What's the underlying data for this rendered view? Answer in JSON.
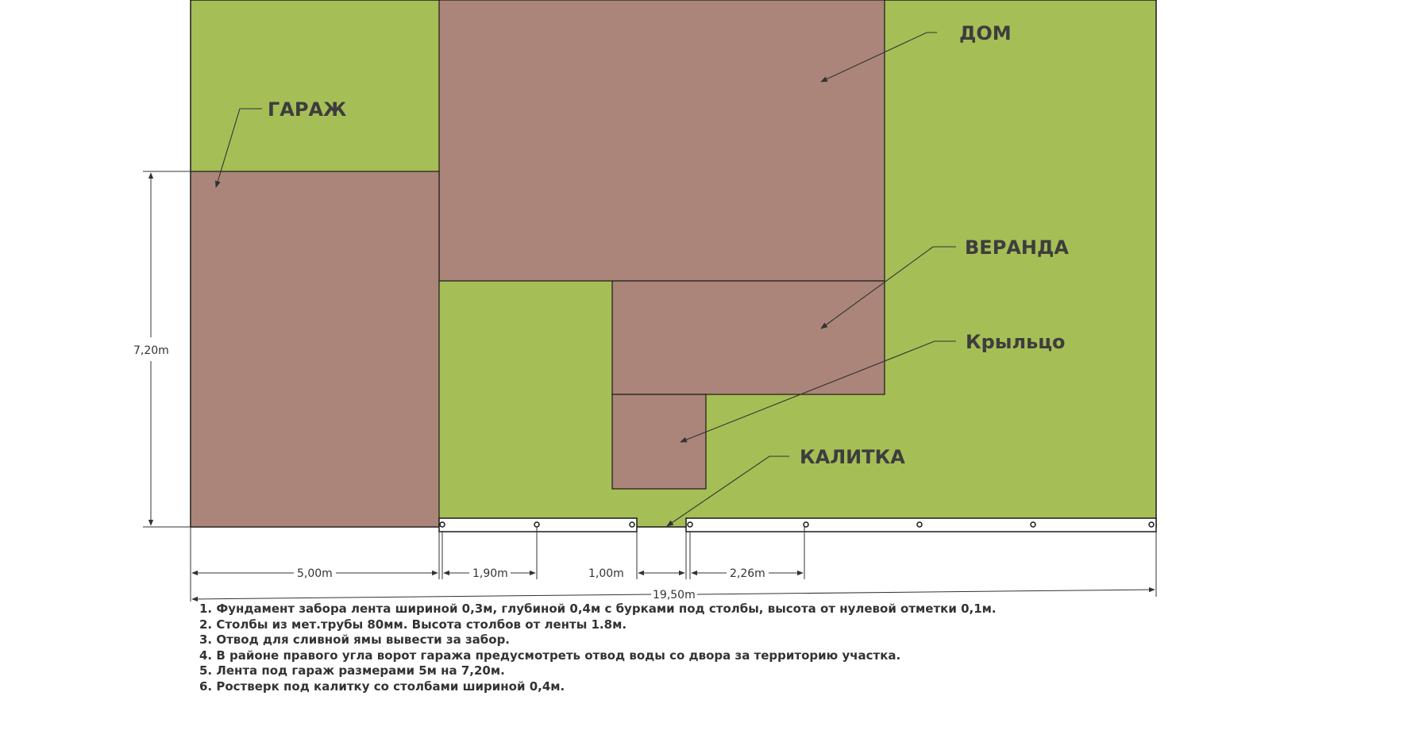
{
  "labels": {
    "dom": "ДОМ",
    "garazh": "ГАРАЖ",
    "veranda": "ВЕРАНДА",
    "kryltso": "Крыльцо",
    "kalitka": "КАЛИТКА"
  },
  "dimensions": {
    "height_garage": "7,20m",
    "w_garage": "5,00m",
    "w_1_90": "1,90m",
    "w_gate": "1,00m",
    "w_2_26": "2,26m",
    "w_total": "19,50m"
  },
  "notes": [
    "1. Фундамент забора лента шириной 0,3м, глубиной 0,4м с бурками под столбы, высота от нулевой отметки 0,1м.",
    "2. Столбы из мет.трубы 80мм. Высота столбов от ленты 1.8м.",
    "3. Отвод для сливной ямы вывести за забор.",
    "4. В районе правого угла ворот гаража предусмотреть отвод воды со двора за территорию участка.",
    "5. Лента под гараж размерами 5м на 7,20м.",
    "6. Ростверк под калитку со столбами шириной 0,4м."
  ],
  "colors": {
    "lawn": "#a6be56",
    "building": "#ab8579",
    "outline": "#1a1a1a"
  }
}
